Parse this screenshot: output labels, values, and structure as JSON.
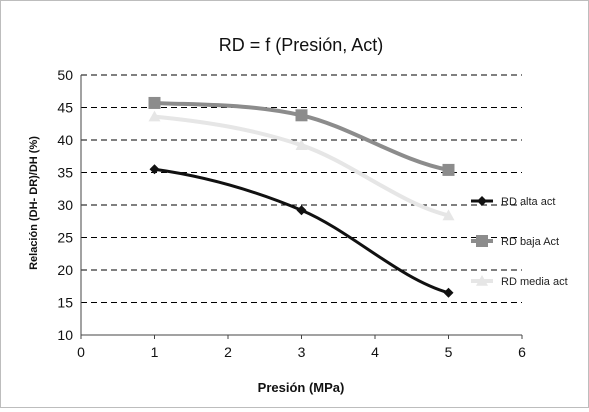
{
  "chart_data": {
    "type": "line",
    "title": "RD =  f (Presión,  Act)",
    "xlabel": "Presión (MPa)",
    "ylabel": "Relación (DH- DR)/DH (%)",
    "xlim": [
      0,
      6
    ],
    "ylim": [
      10,
      50
    ],
    "x_ticks": [
      0,
      1,
      2,
      3,
      4,
      5,
      6
    ],
    "y_ticks": [
      10,
      15,
      20,
      25,
      30,
      35,
      40,
      45,
      50
    ],
    "grid": "horizontal dashed",
    "legend_position": "right",
    "series": [
      {
        "name": "RD alta act",
        "color": "#111111",
        "marker": "diamond",
        "x": [
          1,
          3,
          5
        ],
        "y": [
          35.5,
          29.2,
          16.5
        ]
      },
      {
        "name": "RD baja Act",
        "color": "#8c8c8c",
        "marker": "square",
        "x": [
          1,
          3,
          5
        ],
        "y": [
          45.7,
          43.8,
          35.4
        ]
      },
      {
        "name": "RD media act",
        "color": "#e6e6e6",
        "marker": "triangle",
        "x": [
          1,
          3,
          5
        ],
        "y": [
          43.6,
          39.2,
          28.4
        ]
      }
    ]
  }
}
